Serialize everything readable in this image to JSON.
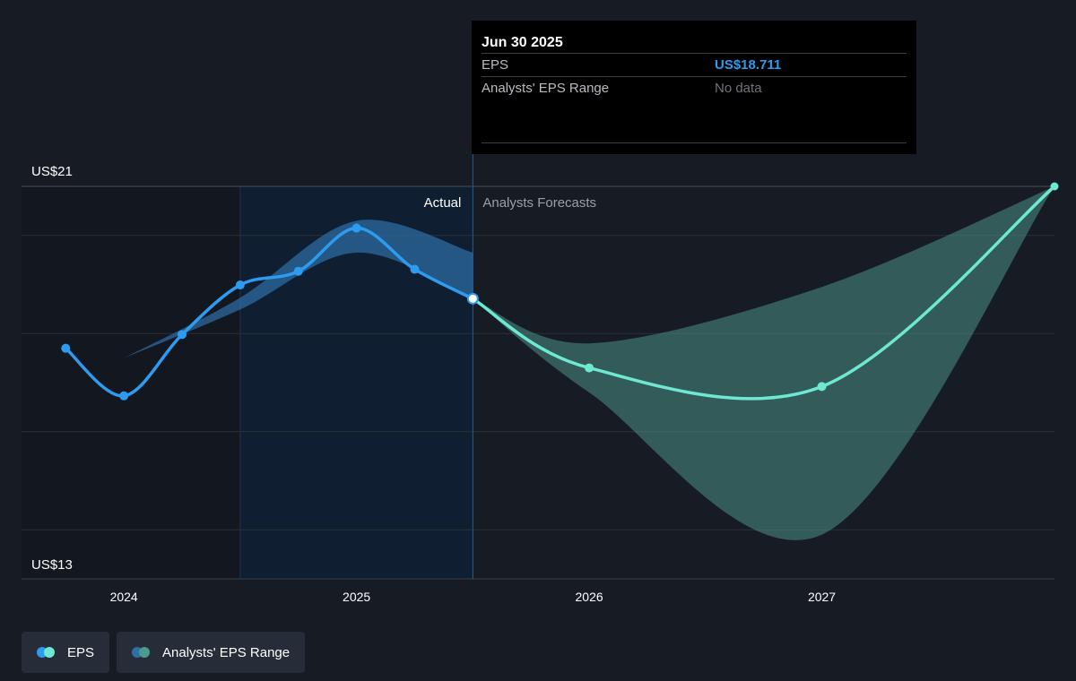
{
  "tooltip": {
    "date": "Jun 30 2025",
    "rows": [
      {
        "label": "EPS",
        "value": "US$18.711"
      },
      {
        "label": "Analysts' EPS Range",
        "value": "No data"
      }
    ]
  },
  "sections": {
    "actual": "Actual",
    "forecast": "Analysts Forecasts"
  },
  "legend": [
    {
      "label": "EPS",
      "colors": [
        "#2d9bf0",
        "#6ee8d0"
      ]
    },
    {
      "label": "Analysts' EPS Range",
      "colors": [
        "#2f6fa8",
        "#4d9a90"
      ]
    }
  ],
  "colors": {
    "background": "#161b24",
    "past_band": "#0f1e30",
    "actual_line": "#2d9bf0",
    "forecast_line": "#6ee8d0",
    "actual_range": "#2f6fa8",
    "forecast_range": "#4b8f86"
  },
  "chart_data": {
    "type": "line",
    "y_axis_labels": [
      "US$21",
      "US$13"
    ],
    "ylim": [
      13,
      21
    ],
    "x_ticks": [
      "2024",
      "2025",
      "2026",
      "2027"
    ],
    "x_tick_values": [
      2024.0,
      2025.0,
      2026.0,
      2027.0
    ],
    "xlim": [
      2023.56,
      2028.0
    ],
    "grid_values": [
      20,
      18,
      16,
      14
    ],
    "divider_x": 2025.5,
    "shaded_start_x": 2024.5,
    "series": [
      {
        "name": "EPS",
        "points": [
          {
            "x": 2023.75,
            "y": 17.7
          },
          {
            "x": 2024.0,
            "y": 16.73
          },
          {
            "x": 2024.25,
            "y": 17.98
          },
          {
            "x": 2024.5,
            "y": 18.99
          },
          {
            "x": 2024.75,
            "y": 19.27
          },
          {
            "x": 2025.0,
            "y": 20.15
          },
          {
            "x": 2025.25,
            "y": 19.31
          },
          {
            "x": 2025.5,
            "y": 18.711
          }
        ]
      },
      {
        "name": "EPS",
        "forecast": true,
        "points": [
          {
            "x": 2025.5,
            "y": 18.711
          },
          {
            "x": 2026.0,
            "y": 17.3
          },
          {
            "x": 2027.0,
            "y": 16.92
          },
          {
            "x": 2028.0,
            "y": 21.0
          }
        ]
      }
    ],
    "ranges": [
      {
        "name": "Analysts' EPS Range",
        "upper": [
          {
            "x": 2024.0,
            "y": 17.5
          },
          {
            "x": 2024.5,
            "y": 18.73
          },
          {
            "x": 2025.0,
            "y": 20.3
          },
          {
            "x": 2025.5,
            "y": 19.65
          }
        ],
        "lower": [
          {
            "x": 2024.0,
            "y": 17.5
          },
          {
            "x": 2024.5,
            "y": 18.49
          },
          {
            "x": 2025.0,
            "y": 19.65
          },
          {
            "x": 2025.5,
            "y": 18.711
          }
        ]
      },
      {
        "name": "Analysts' EPS Range",
        "forecast": true,
        "upper": [
          {
            "x": 2025.5,
            "y": 18.711
          },
          {
            "x": 2026.0,
            "y": 17.8
          },
          {
            "x": 2027.0,
            "y": 18.95
          },
          {
            "x": 2028.0,
            "y": 21.0
          }
        ],
        "lower": [
          {
            "x": 2025.5,
            "y": 18.711
          },
          {
            "x": 2026.0,
            "y": 16.8
          },
          {
            "x": 2027.0,
            "y": 13.9
          },
          {
            "x": 2028.0,
            "y": 21.0
          }
        ]
      }
    ]
  }
}
